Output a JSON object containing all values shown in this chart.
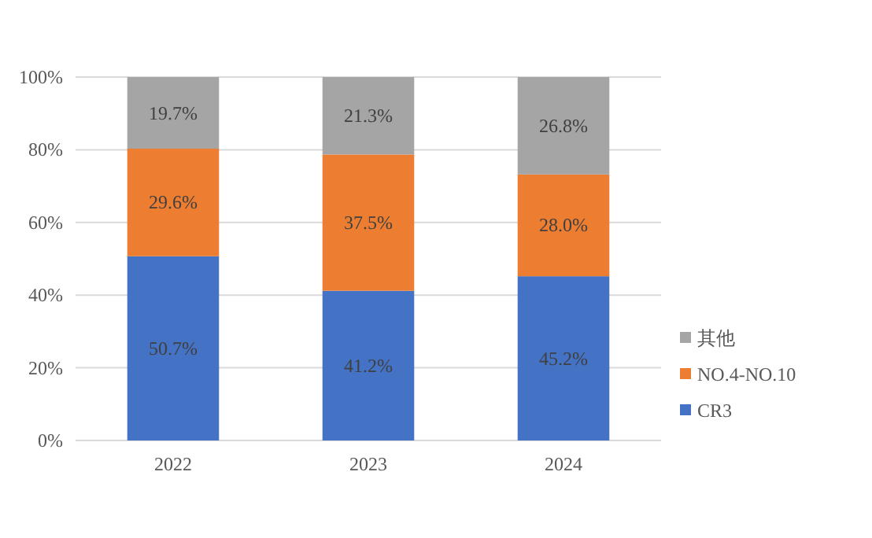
{
  "chart_data": {
    "type": "bar",
    "stacked": true,
    "categories": [
      "2022",
      "2023",
      "2024"
    ],
    "series": [
      {
        "name": "CR3",
        "color": "#4472c4",
        "values": [
          50.7,
          41.2,
          45.2
        ],
        "value_labels": [
          "50.7%",
          "41.2%",
          "45.2%"
        ]
      },
      {
        "name": "NO.4-NO.10",
        "color": "#ed7d31",
        "values": [
          29.6,
          37.5,
          28.0
        ],
        "value_labels": [
          "29.6%",
          "37.5%",
          "28.0%"
        ]
      },
      {
        "name": "其他",
        "color": "#a5a5a5",
        "values": [
          19.7,
          21.3,
          26.8
        ],
        "value_labels": [
          "19.7%",
          "21.3%",
          "26.8%"
        ]
      }
    ],
    "ylim": [
      0,
      100
    ],
    "yticks": [
      {
        "value": 0,
        "label": "0%"
      },
      {
        "value": 20,
        "label": "20%"
      },
      {
        "value": 40,
        "label": "40%"
      },
      {
        "value": 60,
        "label": "60%"
      },
      {
        "value": 80,
        "label": "80%"
      },
      {
        "value": 100,
        "label": "100%"
      }
    ],
    "grid": "y",
    "legend": "right"
  }
}
